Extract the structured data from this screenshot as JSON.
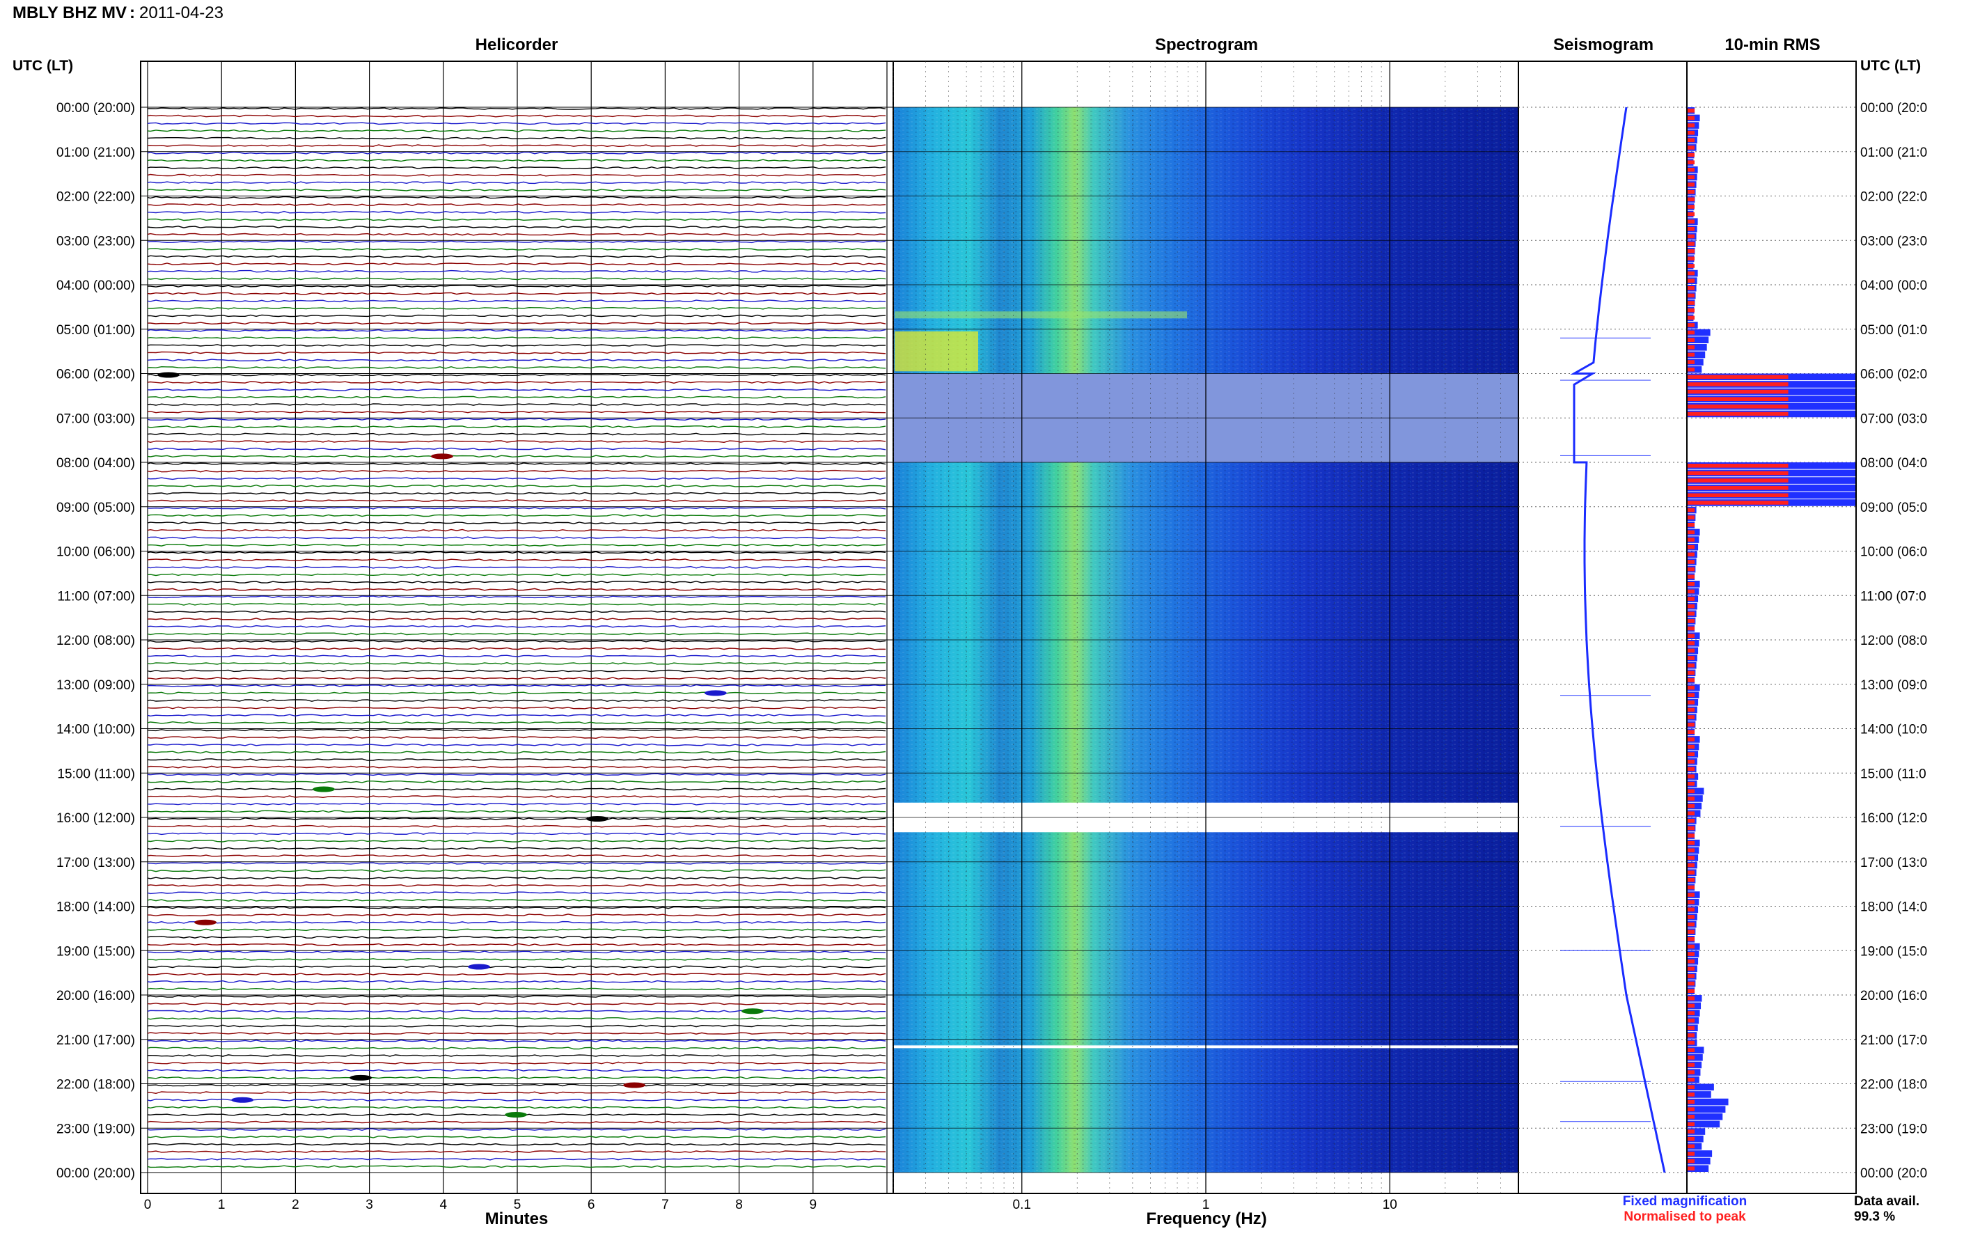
{
  "header": {
    "station": "MBLY BHZ MV",
    "separator": ":",
    "date": "2011-04-23"
  },
  "panels": {
    "helicorder": "Helicorder",
    "spectrogram": "Spectrogram",
    "seismogram": "Seismogram",
    "rms": "10-min RMS"
  },
  "axes": {
    "time_label": "UTC (LT)",
    "minutes_label": "Minutes",
    "frequency_label": "Frequency (Hz)",
    "minute_ticks": [
      "0",
      "1",
      "2",
      "3",
      "4",
      "5",
      "6",
      "7",
      "8",
      "9"
    ],
    "frequency_ticks": [
      "0.1",
      "1",
      "10"
    ],
    "hour_ticks": [
      "00:00 (20:00)",
      "01:00 (21:00)",
      "02:00 (22:00)",
      "03:00 (23:00)",
      "04:00 (00:00)",
      "05:00 (01:00)",
      "06:00 (02:00)",
      "07:00 (03:00)",
      "08:00 (04:00)",
      "09:00 (05:00)",
      "10:00 (06:00)",
      "11:00 (07:00)",
      "12:00 (08:00)",
      "13:00 (09:00)",
      "14:00 (10:00)",
      "15:00 (11:00)",
      "16:00 (12:00)",
      "17:00 (13:00)",
      "18:00 (14:00)",
      "19:00 (15:00)",
      "20:00 (16:00)",
      "21:00 (17:00)",
      "22:00 (18:00)",
      "23:00 (19:00)",
      "00:00 (20:00)"
    ]
  },
  "legend": {
    "fixed": "Fixed magnification",
    "normalised": "Normalised to peak",
    "fixed_color": "#2030ff",
    "normalised_color": "#ff2020"
  },
  "availability": {
    "label": "Data avail.",
    "value": "99.3 %"
  },
  "colors": {
    "trace_cycle": [
      "#000000",
      "#8b0000",
      "#1a1acc",
      "#0a7a0a"
    ],
    "spectrogram_low": "#0a1e9c",
    "spectrogram_high": "#e8f020"
  },
  "chart_data": {
    "type": "heatmap",
    "date": "2011-04-23",
    "helicorder_rows_per_hour": 6,
    "helicorder_minutes_per_row": 10,
    "helicorder_events_utc": [
      "06:00",
      "07:50",
      "13:10",
      "15:20",
      "16:00",
      "18:20",
      "19:20",
      "20:20",
      "21:50",
      "22:00",
      "22:20",
      "22:40"
    ],
    "spectrogram_gaps_utc": [
      [
        "06:00",
        "08:00"
      ],
      [
        "15:40",
        "16:20"
      ],
      [
        "21:10",
        "21:10"
      ]
    ],
    "seismogram_offset_utc": [
      "06:00",
      "08:00"
    ],
    "rms_hours_utc": [
      0,
      1,
      2,
      3,
      4,
      5,
      6,
      7,
      8,
      9,
      10,
      11,
      12,
      13,
      14,
      15,
      16,
      17,
      18,
      19,
      20,
      21,
      22,
      23
    ],
    "rms_fixed_relative": [
      0.06,
      0.05,
      0.05,
      0.05,
      0.05,
      0.12,
      1.0,
      0.0,
      1.0,
      0.06,
      0.06,
      0.06,
      0.06,
      0.06,
      0.06,
      0.08,
      0.06,
      0.06,
      0.06,
      0.06,
      0.07,
      0.08,
      0.2,
      0.12
    ],
    "frequency_range_hz": [
      0.02,
      50
    ],
    "frequency_scale": "log"
  }
}
